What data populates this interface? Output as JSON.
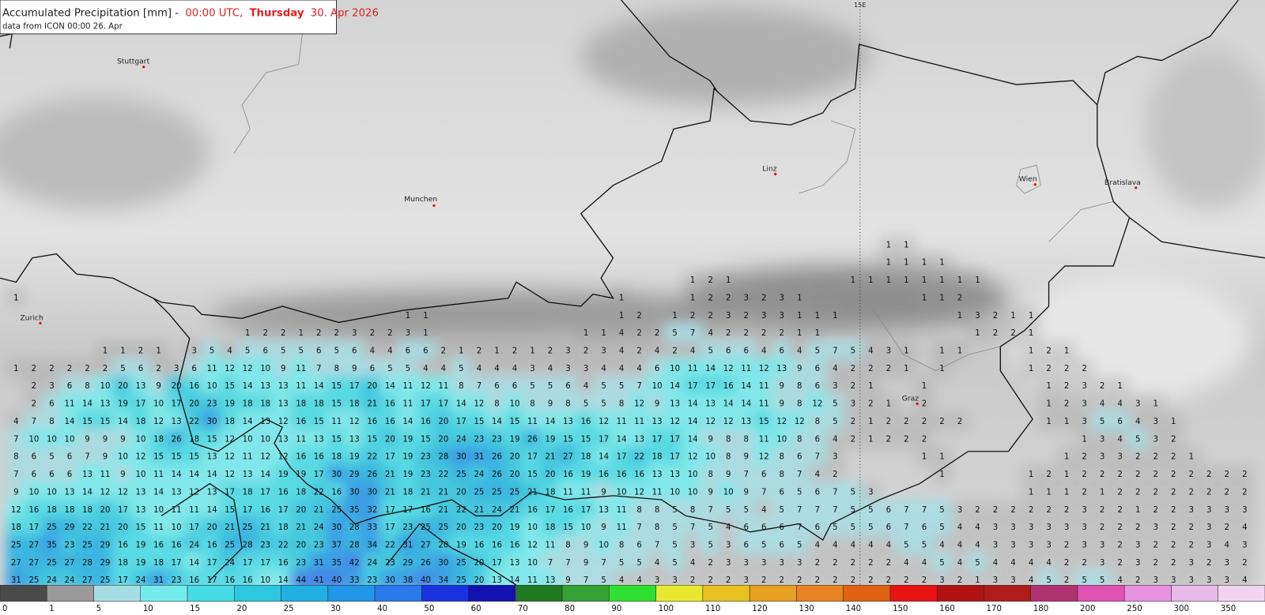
{
  "header": {
    "title": {
      "variable": "Accumulated Precipitation [mm] -",
      "time": "00:00 UTC,",
      "weekday": "Thursday",
      "date": "30. Apr 2026"
    },
    "subtitle": "data from ICON 00:00 26. Apr"
  },
  "map": {
    "meridian_label": "15E",
    "cities": [
      "Stuttgart",
      "Munchen",
      "Zurich",
      "Linz",
      "Wien",
      "Bratislava",
      "Graz"
    ],
    "grid": [
      [
        null,
        null,
        null,
        null,
        null,
        null,
        null,
        null,
        null,
        null,
        null,
        null,
        null,
        null,
        null,
        null,
        null,
        null,
        null,
        null,
        null,
        null,
        null,
        null,
        null,
        null,
        null,
        null,
        null,
        null,
        null,
        null,
        null,
        null,
        null,
        null,
        null,
        null,
        null,
        null,
        null,
        null,
        null,
        null,
        null,
        null,
        null,
        null,
        null,
        1,
        1
      ],
      [
        null,
        null,
        null,
        null,
        null,
        null,
        null,
        null,
        null,
        null,
        null,
        null,
        null,
        null,
        null,
        null,
        null,
        null,
        null,
        null,
        null,
        null,
        null,
        null,
        null,
        null,
        null,
        null,
        null,
        null,
        null,
        null,
        null,
        null,
        null,
        null,
        null,
        null,
        null,
        null,
        null,
        null,
        null,
        null,
        null,
        null,
        null,
        null,
        null,
        1,
        1,
        1,
        1
      ],
      [
        null,
        null,
        null,
        null,
        null,
        null,
        null,
        null,
        null,
        null,
        null,
        null,
        null,
        null,
        null,
        null,
        null,
        null,
        null,
        null,
        null,
        null,
        null,
        null,
        null,
        null,
        null,
        null,
        null,
        null,
        null,
        null,
        null,
        null,
        null,
        null,
        null,
        null,
        1,
        2,
        1,
        null,
        null,
        null,
        null,
        null,
        null,
        1,
        1,
        1,
        1,
        1,
        1,
        1,
        1
      ],
      [
        1,
        null,
        null,
        null,
        null,
        null,
        null,
        null,
        null,
        null,
        null,
        null,
        null,
        null,
        null,
        null,
        null,
        null,
        null,
        null,
        null,
        null,
        null,
        null,
        null,
        null,
        null,
        null,
        null,
        null,
        null,
        null,
        null,
        null,
        1,
        null,
        null,
        null,
        1,
        2,
        2,
        3,
        2,
        3,
        1,
        null,
        null,
        null,
        null,
        null,
        null,
        1,
        1,
        2
      ],
      [
        null,
        null,
        null,
        null,
        null,
        null,
        null,
        null,
        null,
        null,
        null,
        null,
        null,
        null,
        null,
        null,
        null,
        null,
        null,
        null,
        null,
        null,
        1,
        1,
        null,
        null,
        null,
        null,
        null,
        null,
        null,
        null,
        null,
        null,
        1,
        2,
        null,
        1,
        2,
        2,
        3,
        2,
        3,
        3,
        1,
        1,
        1,
        null,
        null,
        null,
        null,
        null,
        null,
        1,
        3,
        2,
        1,
        1
      ],
      [
        null,
        null,
        null,
        null,
        null,
        null,
        null,
        null,
        null,
        null,
        null,
        null,
        null,
        1,
        2,
        2,
        1,
        2,
        2,
        3,
        2,
        2,
        3,
        1,
        null,
        null,
        null,
        null,
        null,
        null,
        null,
        null,
        1,
        1,
        4,
        2,
        2,
        5,
        7,
        4,
        2,
        2,
        2,
        2,
        1,
        1,
        null,
        null,
        null,
        null,
        null,
        null,
        null,
        null,
        1,
        2,
        2,
        1
      ],
      [
        null,
        null,
        null,
        null,
        null,
        1,
        1,
        2,
        1,
        null,
        3,
        5,
        4,
        5,
        6,
        5,
        5,
        6,
        5,
        6,
        4,
        4,
        6,
        6,
        2,
        1,
        2,
        1,
        2,
        1,
        2,
        3,
        2,
        3,
        4,
        2,
        4,
        2,
        4,
        5,
        6,
        6,
        4,
        6,
        4,
        5,
        7,
        5,
        4,
        3,
        1,
        null,
        1,
        1,
        null,
        null,
        null,
        1,
        2,
        1
      ],
      [
        1,
        2,
        2,
        2,
        2,
        2,
        5,
        6,
        2,
        3,
        6,
        11,
        12,
        12,
        10,
        9,
        11,
        7,
        8,
        9,
        6,
        5,
        5,
        4,
        4,
        5,
        4,
        4,
        4,
        3,
        4,
        3,
        3,
        4,
        4,
        4,
        6,
        10,
        11,
        14,
        12,
        11,
        12,
        13,
        9,
        6,
        4,
        2,
        2,
        2,
        1,
        null,
        1,
        null,
        null,
        null,
        null,
        1,
        2,
        2,
        2
      ],
      [
        null,
        2,
        3,
        6,
        8,
        10,
        20,
        13,
        9,
        20,
        16,
        10,
        15,
        14,
        13,
        13,
        11,
        14,
        15,
        17,
        20,
        14,
        11,
        12,
        11,
        8,
        7,
        6,
        6,
        5,
        5,
        6,
        4,
        5,
        5,
        7,
        10,
        14,
        17,
        17,
        16,
        14,
        11,
        9,
        8,
        6,
        3,
        2,
        1,
        null,
        null,
        1,
        null,
        null,
        null,
        null,
        null,
        null,
        1,
        2,
        3,
        2,
        1
      ],
      [
        null,
        2,
        6,
        11,
        14,
        13,
        19,
        17,
        10,
        17,
        20,
        23,
        19,
        18,
        18,
        13,
        18,
        18,
        15,
        18,
        21,
        16,
        11,
        17,
        17,
        14,
        12,
        8,
        10,
        8,
        9,
        8,
        5,
        5,
        8,
        12,
        9,
        13,
        14,
        13,
        14,
        14,
        11,
        9,
        8,
        12,
        5,
        3,
        2,
        1,
        null,
        2,
        null,
        null,
        null,
        null,
        null,
        null,
        1,
        2,
        3,
        4,
        4,
        3,
        1
      ],
      [
        4,
        7,
        8,
        14,
        15,
        15,
        14,
        18,
        12,
        13,
        22,
        30,
        18,
        14,
        13,
        12,
        16,
        15,
        11,
        12,
        16,
        16,
        14,
        16,
        20,
        17,
        15,
        14,
        15,
        11,
        14,
        13,
        16,
        12,
        11,
        11,
        13,
        12,
        14,
        12,
        12,
        13,
        15,
        12,
        12,
        8,
        5,
        2,
        1,
        2,
        2,
        2,
        2,
        2,
        null,
        null,
        null,
        null,
        1,
        1,
        3,
        5,
        6,
        4,
        3,
        1
      ],
      [
        7,
        10,
        10,
        10,
        9,
        9,
        9,
        10,
        18,
        26,
        18,
        15,
        12,
        10,
        10,
        13,
        11,
        13,
        15,
        13,
        15,
        20,
        19,
        15,
        20,
        24,
        23,
        23,
        19,
        26,
        19,
        15,
        15,
        17,
        14,
        13,
        17,
        17,
        14,
        9,
        8,
        8,
        11,
        10,
        8,
        6,
        4,
        2,
        1,
        2,
        2,
        2,
        null,
        null,
        null,
        null,
        null,
        null,
        null,
        null,
        1,
        3,
        4,
        5,
        3,
        2
      ],
      [
        8,
        6,
        5,
        6,
        7,
        9,
        10,
        12,
        15,
        15,
        15,
        13,
        12,
        11,
        12,
        12,
        16,
        16,
        18,
        19,
        22,
        17,
        19,
        23,
        28,
        30,
        31,
        26,
        20,
        17,
        21,
        27,
        18,
        14,
        17,
        22,
        18,
        17,
        12,
        10,
        8,
        9,
        12,
        8,
        6,
        7,
        3,
        null,
        null,
        null,
        null,
        1,
        1,
        null,
        null,
        null,
        null,
        null,
        null,
        1,
        2,
        3,
        3,
        2,
        2,
        2,
        1
      ],
      [
        7,
        6,
        6,
        6,
        13,
        11,
        9,
        10,
        11,
        14,
        14,
        14,
        12,
        13,
        14,
        19,
        19,
        17,
        30,
        29,
        26,
        21,
        19,
        23,
        22,
        25,
        24,
        26,
        20,
        15,
        20,
        16,
        19,
        16,
        16,
        16,
        13,
        13,
        10,
        8,
        9,
        7,
        6,
        8,
        7,
        4,
        2,
        null,
        null,
        null,
        null,
        null,
        1,
        null,
        null,
        null,
        null,
        1,
        2,
        1,
        2,
        2,
        2,
        2,
        2,
        2,
        2,
        2,
        2,
        2
      ],
      [
        9,
        10,
        10,
        13,
        14,
        12,
        12,
        13,
        14,
        13,
        12,
        13,
        17,
        18,
        17,
        16,
        18,
        22,
        16,
        30,
        30,
        21,
        18,
        21,
        21,
        20,
        25,
        25,
        25,
        21,
        18,
        11,
        11,
        9,
        10,
        12,
        11,
        10,
        10,
        9,
        10,
        9,
        7,
        6,
        5,
        6,
        7,
        5,
        3,
        null,
        null,
        null,
        null,
        null,
        null,
        null,
        null,
        1,
        1,
        1,
        2,
        1,
        2,
        2,
        2,
        2,
        2,
        2,
        2,
        2
      ],
      [
        12,
        16,
        18,
        18,
        18,
        20,
        17,
        13,
        10,
        11,
        11,
        14,
        15,
        17,
        16,
        17,
        20,
        21,
        25,
        35,
        32,
        17,
        17,
        16,
        21,
        22,
        21,
        24,
        21,
        16,
        17,
        16,
        17,
        13,
        11,
        8,
        8,
        5,
        8,
        7,
        5,
        5,
        4,
        5,
        7,
        7,
        7,
        5,
        5,
        6,
        7,
        7,
        5,
        3,
        2,
        2,
        2,
        2,
        2,
        2,
        3,
        2,
        2,
        1,
        2,
        2,
        3,
        3,
        3,
        3
      ],
      [
        18,
        17,
        25,
        29,
        22,
        21,
        20,
        15,
        11,
        10,
        17,
        20,
        21,
        25,
        21,
        18,
        21,
        24,
        30,
        28,
        33,
        17,
        23,
        25,
        25,
        20,
        23,
        20,
        19,
        10,
        18,
        15,
        10,
        9,
        11,
        7,
        8,
        5,
        7,
        5,
        4,
        6,
        6,
        6,
        7,
        6,
        5,
        5,
        5,
        6,
        7,
        6,
        5,
        4,
        4,
        3,
        3,
        3,
        3,
        3,
        3,
        2,
        2,
        2,
        3,
        2,
        2,
        3,
        2,
        4
      ],
      [
        25,
        27,
        35,
        23,
        25,
        29,
        16,
        19,
        16,
        16,
        24,
        16,
        25,
        28,
        23,
        22,
        20,
        23,
        37,
        28,
        34,
        22,
        31,
        27,
        20,
        19,
        16,
        16,
        16,
        12,
        11,
        8,
        9,
        10,
        8,
        6,
        7,
        5,
        3,
        5,
        3,
        6,
        5,
        6,
        5,
        4,
        4,
        4,
        4,
        4,
        5,
        5,
        4,
        4,
        4,
        3,
        3,
        3,
        3,
        2,
        3,
        3,
        2,
        3,
        2,
        2,
        2,
        3,
        4,
        3
      ],
      [
        27,
        27,
        25,
        27,
        28,
        29,
        18,
        19,
        18,
        17,
        14,
        17,
        24,
        17,
        17,
        16,
        23,
        31,
        35,
        42,
        24,
        23,
        29,
        26,
        30,
        25,
        20,
        17,
        13,
        10,
        7,
        7,
        9,
        7,
        5,
        5,
        4,
        5,
        4,
        2,
        3,
        3,
        3,
        3,
        3,
        2,
        2,
        2,
        2,
        2,
        4,
        4,
        5,
        4,
        5,
        4,
        4,
        4,
        4,
        2,
        2,
        3,
        2,
        3,
        2,
        2,
        3,
        2,
        3,
        2
      ],
      [
        31,
        25,
        24,
        24,
        27,
        25,
        17,
        24,
        31,
        23,
        16,
        17,
        16,
        16,
        10,
        14,
        44,
        41,
        40,
        33,
        23,
        30,
        38,
        40,
        34,
        25,
        20,
        13,
        14,
        11,
        13,
        9,
        7,
        5,
        4,
        4,
        3,
        3,
        2,
        2,
        2,
        3,
        2,
        2,
        2,
        2,
        2,
        2,
        2,
        2,
        2,
        2,
        3,
        2,
        1,
        3,
        3,
        4,
        5,
        2,
        5,
        5,
        4,
        2,
        3,
        3,
        3,
        3,
        3,
        4
      ]
    ]
  },
  "legend": {
    "levels": [
      0,
      1,
      5,
      10,
      15,
      20,
      25,
      30,
      40,
      50,
      60,
      70,
      80,
      90,
      100,
      110,
      120,
      130,
      140,
      150,
      160,
      170,
      180,
      200,
      250,
      300,
      350
    ],
    "colors": [
      "#4a4a4a",
      "#9a9a9a",
      "#a6dde4",
      "#74ecee",
      "#45dce6",
      "#2ec6e0",
      "#22b0e2",
      "#2296e8",
      "#2a78ea",
      "#1a32e0",
      "#1212b0",
      "#207a22",
      "#34a234",
      "#30e030",
      "#e8e830",
      "#e8c022",
      "#e8a022",
      "#e88222",
      "#e06212",
      "#e81212",
      "#b01212",
      "#b01c1c",
      "#b03272",
      "#e052b2",
      "#e892e2",
      "#e8bae8",
      "#f2d4f2"
    ]
  }
}
